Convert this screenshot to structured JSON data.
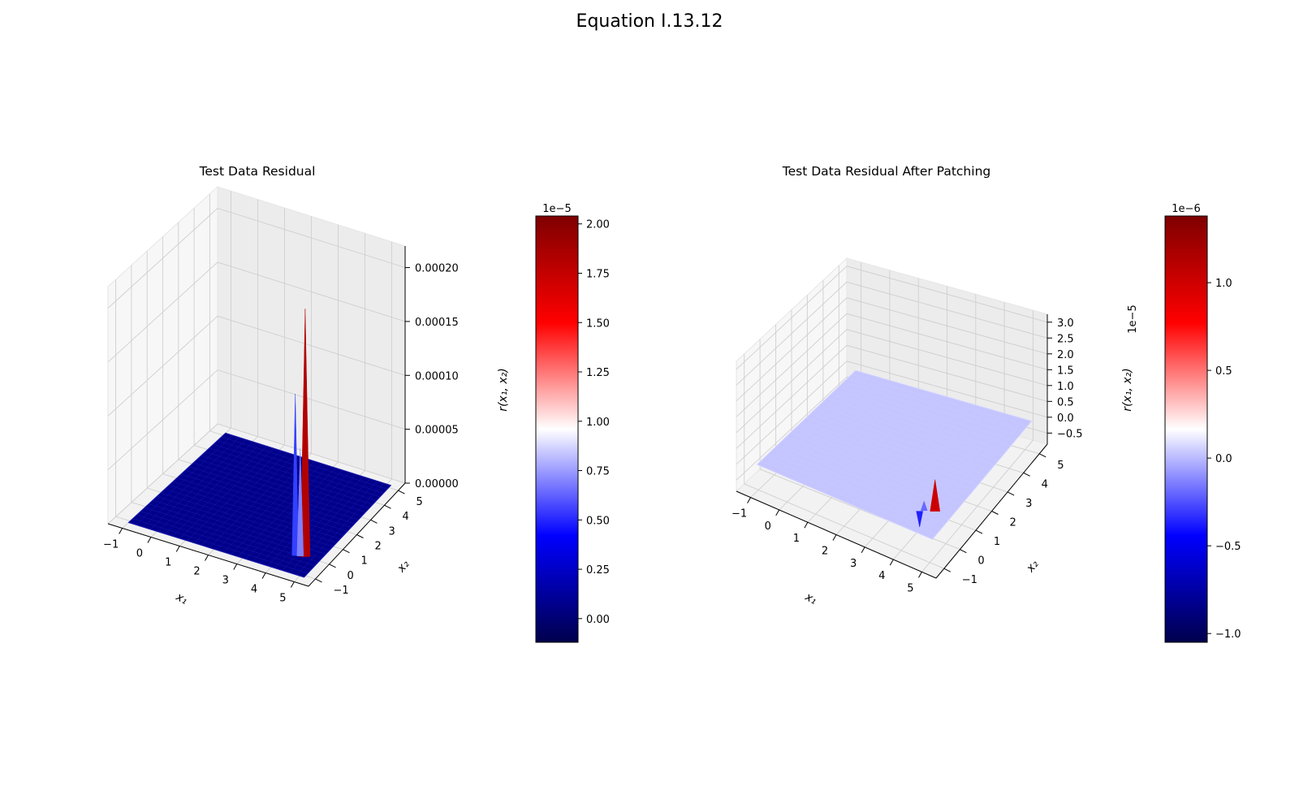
{
  "figure": {
    "title": "Equation I.13.12"
  },
  "chart_data": [
    {
      "type": "surface3d",
      "title": "Test Data Residual",
      "xlabel": "x₁",
      "ylabel": "x₂",
      "zlabel": "r(x₁, x₂)",
      "xlim": [
        -1.5,
        5.5
      ],
      "ylim": [
        -1.5,
        5.5
      ],
      "zlim": [
        0,
        0.00022
      ],
      "xticks": [
        "−1",
        "0",
        "1",
        "2",
        "3",
        "4",
        "5"
      ],
      "yticks": [
        "−1",
        "0",
        "1",
        "2",
        "3",
        "4",
        "5"
      ],
      "zticks": [
        "0.00000",
        "0.00005",
        "0.00010",
        "0.00015",
        "0.00020"
      ],
      "colormap": "seismic",
      "surface_base_color": "#00008b",
      "spikes": [
        {
          "x": 4.65,
          "y": 0.0,
          "z": 0.00023,
          "color": "#b20000"
        },
        {
          "x": 4.35,
          "y": -0.1,
          "z": 0.00015,
          "color": "#3340ff"
        },
        {
          "x": 4.5,
          "y": -0.05,
          "z": 0.0001,
          "color": "#7f7fff"
        }
      ],
      "colorbar": {
        "range": [
          -0.12,
          2.04
        ],
        "offset_text": "1e−5",
        "ticks": [
          "0.00",
          "0.25",
          "0.50",
          "0.75",
          "1.00",
          "1.25",
          "1.50",
          "1.75",
          "2.00"
        ]
      }
    },
    {
      "type": "surface3d",
      "title": "Test Data Residual After Patching",
      "xlabel": "x₁",
      "ylabel": "x₂",
      "zlabel": "r(x₁, x₂)",
      "xlim": [
        -1.5,
        5.5
      ],
      "ylim": [
        -1.5,
        5.5
      ],
      "zlim": [
        -0.85,
        3.25
      ],
      "z_offset_text": "1e−5",
      "xticks": [
        "−1",
        "0",
        "1",
        "2",
        "3",
        "4",
        "5"
      ],
      "yticks": [
        "−1",
        "0",
        "1",
        "2",
        "3",
        "4",
        "5"
      ],
      "zticks": [
        "−0.5",
        "0.0",
        "0.5",
        "1.0",
        "1.5",
        "2.0",
        "2.5",
        "3.0"
      ],
      "colormap": "seismic",
      "surface_base_color": "#c4c4ff",
      "spikes": [
        {
          "x": 4.6,
          "y": 0.05,
          "z": 1.0,
          "color": "#cc0000"
        },
        {
          "x": 4.3,
          "y": -0.1,
          "z": 0.3,
          "color": "#6a6aff"
        },
        {
          "x": 4.2,
          "y": -0.2,
          "z": -0.5,
          "color": "#2020ff"
        }
      ],
      "colorbar": {
        "range": [
          -1.05,
          1.38
        ],
        "offset_text": "1e−6",
        "ticks": [
          "−1.0",
          "−0.5",
          "0.0",
          "0.5",
          "1.0"
        ]
      }
    }
  ]
}
